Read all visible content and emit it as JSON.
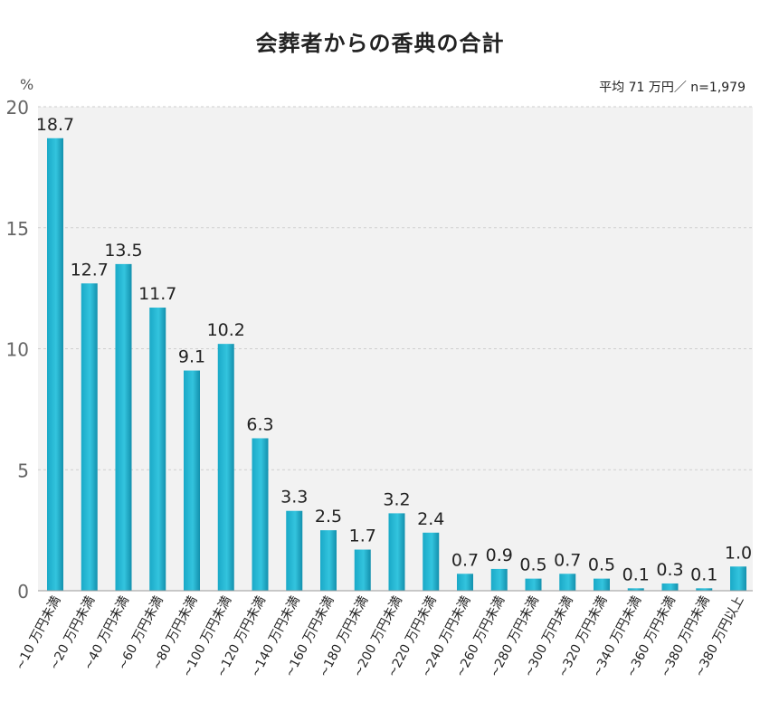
{
  "title": "会葬者からの香典の合計",
  "note": "平均 71 万円／ n=1,979",
  "chart_data": {
    "type": "bar",
    "ylabel": "%",
    "ylim": [
      0,
      20
    ],
    "yticks": [
      0,
      5,
      10,
      15,
      20
    ],
    "grid": true,
    "categories": [
      "~10 万円未満",
      "~20 万円未満",
      "~40 万円未満",
      "~60 万円未満",
      "~80 万円未満",
      "~100 万円未満",
      "~120 万円未満",
      "~140 万円未満",
      "~160 万円未満",
      "~180 万円未満",
      "~200 万円未満",
      "~220 万円未満",
      "~240 万円未満",
      "~260 万円未満",
      "~280 万円未満",
      "~300 万円未満",
      "~320 万円未満",
      "~340 万円未満",
      "~360 万円未満",
      "~380 万円未満",
      "~380 万円以上"
    ],
    "values": [
      18.7,
      12.7,
      13.5,
      11.7,
      9.1,
      10.2,
      6.3,
      3.3,
      2.5,
      1.7,
      3.2,
      2.4,
      0.7,
      0.9,
      0.5,
      0.7,
      0.5,
      0.1,
      0.3,
      0.1,
      1.0
    ],
    "labels": [
      "18.7",
      "12.7",
      "13.5",
      "11.7",
      "9.1",
      "10.2",
      "6.3",
      "3.3",
      "2.5",
      "1.7",
      "3.2",
      "2.4",
      "0.7",
      "0.9",
      "0.5",
      "0.7",
      "0.5",
      "0.1",
      "0.3",
      "0.1",
      "1.0"
    ],
    "bar_color": "#1fb3d1",
    "bar_highlight": "#5fd0e6",
    "plot_background": "#f2f2f2"
  }
}
